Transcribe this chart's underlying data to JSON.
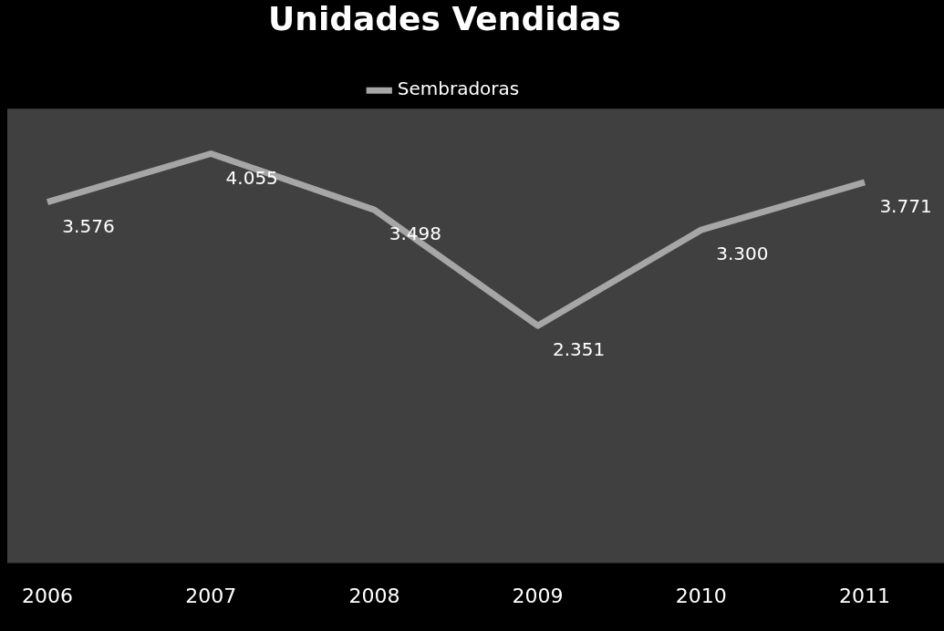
{
  "chart_data": {
    "type": "line",
    "title": "Unidades Vendidas",
    "categories": [
      "2006",
      "2007",
      "2008",
      "2009",
      "2010",
      "2011"
    ],
    "series": [
      {
        "name": "Sembradoras",
        "color": "#a6a6a6",
        "values": [
          3576,
          4055,
          3498,
          2351,
          3300,
          3771
        ],
        "value_labels": [
          "3.576",
          "4.055",
          "3.498",
          "2.351",
          "3.300",
          "3.771"
        ]
      }
    ],
    "ylim": [
      0,
      4500
    ],
    "tick_labels": "x",
    "grid": false,
    "legend": "top",
    "marker": "none"
  }
}
